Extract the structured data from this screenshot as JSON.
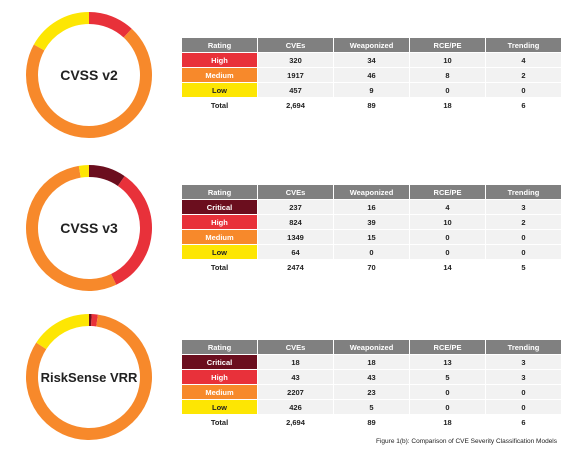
{
  "headers": [
    "Rating",
    "CVEs",
    "Weaponized",
    "RCE/PE",
    "Trending"
  ],
  "caption": "Figure 1(b): Comparison of CVE Severity Classification Models",
  "colors": {
    "Critical": "#6b0e1e",
    "High": "#e8313a",
    "Medium": "#f7892b",
    "Low": "#fde603"
  },
  "chart_data": [
    {
      "type": "pie",
      "variant": "donut",
      "title": "CVSS v2",
      "categories": [
        "High",
        "Medium",
        "Low"
      ],
      "values": [
        320,
        1917,
        457
      ],
      "table": {
        "rows": [
          {
            "rating": "High",
            "cves": "320",
            "weaponized": "34",
            "rce_pe": "10",
            "trending": "4"
          },
          {
            "rating": "Medium",
            "cves": "1917",
            "weaponized": "46",
            "rce_pe": "8",
            "trending": "2"
          },
          {
            "rating": "Low",
            "cves": "457",
            "weaponized": "9",
            "rce_pe": "0",
            "trending": "0"
          }
        ],
        "total": {
          "rating": "Total",
          "cves": "2,694",
          "weaponized": "89",
          "rce_pe": "18",
          "trending": "6"
        }
      }
    },
    {
      "type": "pie",
      "variant": "donut",
      "title": "CVSS v3",
      "categories": [
        "Critical",
        "High",
        "Medium",
        "Low"
      ],
      "values": [
        237,
        824,
        1349,
        64
      ],
      "table": {
        "rows": [
          {
            "rating": "Critical",
            "cves": "237",
            "weaponized": "16",
            "rce_pe": "4",
            "trending": "3"
          },
          {
            "rating": "High",
            "cves": "824",
            "weaponized": "39",
            "rce_pe": "10",
            "trending": "2"
          },
          {
            "rating": "Medium",
            "cves": "1349",
            "weaponized": "15",
            "rce_pe": "0",
            "trending": "0"
          },
          {
            "rating": "Low",
            "cves": "64",
            "weaponized": "0",
            "rce_pe": "0",
            "trending": "0"
          }
        ],
        "total": {
          "rating": "Total",
          "cves": "2474",
          "weaponized": "70",
          "rce_pe": "14",
          "trending": "5"
        }
      }
    },
    {
      "type": "pie",
      "variant": "donut",
      "title": "RiskSense VRR",
      "categories": [
        "Critical",
        "High",
        "Medium",
        "Low"
      ],
      "values": [
        18,
        43,
        2207,
        426
      ],
      "table": {
        "rows": [
          {
            "rating": "Critical",
            "cves": "18",
            "weaponized": "18",
            "rce_pe": "13",
            "trending": "3"
          },
          {
            "rating": "High",
            "cves": "43",
            "weaponized": "43",
            "rce_pe": "5",
            "trending": "3"
          },
          {
            "rating": "Medium",
            "cves": "2207",
            "weaponized": "23",
            "rce_pe": "0",
            "trending": "0"
          },
          {
            "rating": "Low",
            "cves": "426",
            "weaponized": "5",
            "rce_pe": "0",
            "trending": "0"
          }
        ],
        "total": {
          "rating": "Total",
          "cves": "2,694",
          "weaponized": "89",
          "rce_pe": "18",
          "trending": "6"
        }
      }
    }
  ]
}
